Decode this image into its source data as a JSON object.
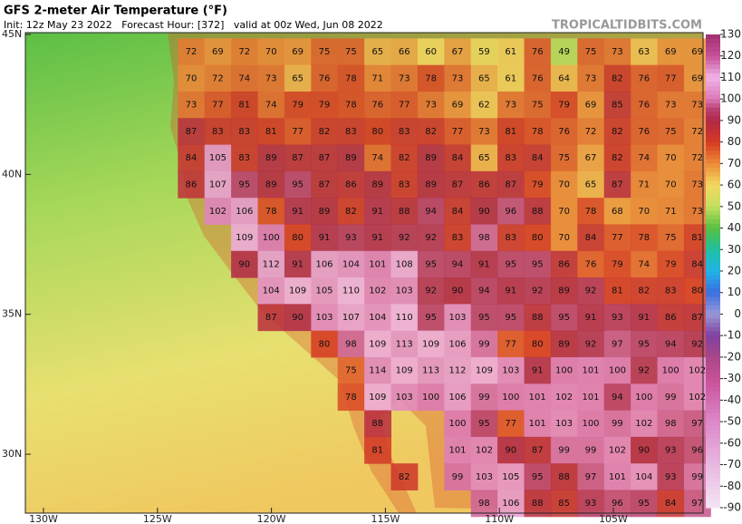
{
  "header": {
    "title": "GFS 2-meter Air Temperature (°F)",
    "subtitle": "Init: 12z May 23 2022   Forecast Hour: [372]   valid at 00z Wed, Jun 08 2022",
    "source": "TROPICALTIDBITS.COM"
  },
  "map": {
    "lat_ticks": [
      {
        "value": 45,
        "label": "45N"
      },
      {
        "value": 40,
        "label": "40N"
      },
      {
        "value": 35,
        "label": "35N"
      },
      {
        "value": 30,
        "label": "30N"
      }
    ],
    "lon_ticks": [
      {
        "value": -130,
        "label": "130W"
      },
      {
        "value": -125,
        "label": "125W"
      },
      {
        "value": -120,
        "label": "120W"
      },
      {
        "value": -115,
        "label": "115W"
      },
      {
        "value": -110,
        "label": "110W"
      },
      {
        "value": -105,
        "label": "105W"
      }
    ],
    "grid": [
      [
        72,
        69,
        72,
        70,
        69,
        75,
        75,
        65,
        66,
        60,
        67,
        59,
        61,
        76,
        49,
        75,
        73,
        63,
        69,
        69
      ],
      [
        70,
        72,
        74,
        73,
        65,
        76,
        78,
        71,
        73,
        78,
        73,
        65,
        61,
        76,
        64,
        73,
        82,
        76,
        77,
        69
      ],
      [
        73,
        77,
        81,
        74,
        79,
        79,
        78,
        76,
        77,
        73,
        69,
        62,
        73,
        75,
        79,
        69,
        85,
        76,
        73,
        73
      ],
      [
        87,
        83,
        83,
        81,
        77,
        82,
        83,
        80,
        83,
        82,
        77,
        73,
        81,
        78,
        76,
        72,
        82,
        76,
        75,
        72
      ],
      [
        84,
        105,
        83,
        89,
        87,
        87,
        89,
        74,
        82,
        89,
        84,
        65,
        83,
        84,
        75,
        67,
        82,
        74,
        70,
        72
      ],
      [
        86,
        107,
        95,
        89,
        95,
        87,
        86,
        89,
        83,
        89,
        87,
        86,
        87,
        79,
        70,
        65,
        87,
        71,
        70,
        73
      ],
      [
        null,
        102,
        106,
        78,
        91,
        89,
        82,
        91,
        88,
        94,
        84,
        90,
        96,
        88,
        70,
        78,
        68,
        70,
        71,
        73
      ],
      [
        null,
        null,
        109,
        100,
        80,
        91,
        93,
        91,
        92,
        92,
        83,
        98,
        83,
        80,
        70,
        84,
        77,
        78,
        75,
        81
      ],
      [
        null,
        null,
        90,
        112,
        91,
        106,
        104,
        101,
        108,
        95,
        94,
        91,
        95,
        95,
        86,
        76,
        79,
        74,
        79,
        84
      ],
      [
        null,
        null,
        null,
        104,
        109,
        105,
        110,
        102,
        103,
        92,
        90,
        94,
        91,
        92,
        89,
        92,
        81,
        82,
        83,
        80
      ],
      [
        null,
        null,
        null,
        87,
        90,
        103,
        107,
        104,
        110,
        95,
        103,
        95,
        95,
        88,
        95,
        91,
        93,
        91,
        86,
        87
      ],
      [
        null,
        null,
        null,
        null,
        null,
        80,
        98,
        109,
        113,
        109,
        106,
        99,
        77,
        80,
        89,
        92,
        97,
        95,
        94,
        92
      ],
      [
        null,
        null,
        null,
        null,
        null,
        null,
        75,
        114,
        109,
        113,
        112,
        109,
        103,
        91,
        100,
        101,
        100,
        92,
        100,
        102
      ],
      [
        null,
        null,
        null,
        null,
        null,
        null,
        78,
        109,
        103,
        100,
        106,
        99,
        100,
        101,
        102,
        101,
        94,
        100,
        99,
        102
      ],
      [
        null,
        null,
        null,
        null,
        null,
        null,
        null,
        88,
        null,
        null,
        100,
        95,
        77,
        101,
        103,
        100,
        99,
        102,
        98,
        97
      ],
      [
        null,
        null,
        null,
        null,
        null,
        null,
        null,
        81,
        null,
        null,
        101,
        102,
        90,
        87,
        99,
        99,
        102,
        90,
        93,
        96
      ],
      [
        null,
        null,
        null,
        null,
        null,
        null,
        null,
        null,
        82,
        null,
        99,
        103,
        105,
        95,
        88,
        97,
        101,
        104,
        93,
        99
      ],
      [
        null,
        null,
        null,
        null,
        null,
        null,
        null,
        null,
        null,
        null,
        null,
        98,
        106,
        88,
        85,
        93,
        96,
        95,
        84,
        97
      ]
    ]
  },
  "colorbar": {
    "ticks": [
      130,
      120,
      110,
      100,
      90,
      80,
      70,
      60,
      50,
      40,
      30,
      20,
      10,
      0,
      -10,
      -20,
      -30,
      -40,
      -50,
      -60,
      -70,
      -80,
      -90
    ]
  }
}
